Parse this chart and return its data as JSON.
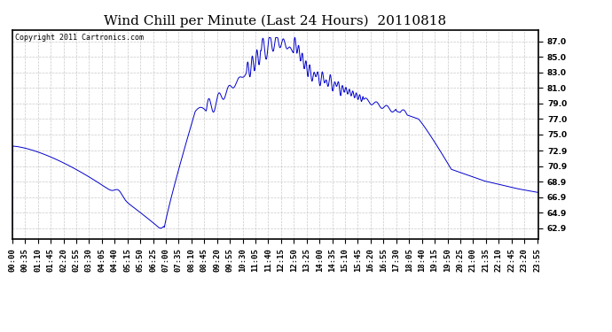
{
  "title": "Wind Chill per Minute (Last 24 Hours)  20110818",
  "copyright": "Copyright 2011 Cartronics.com",
  "line_color": "#0000cc",
  "bg_color": "#ffffff",
  "plot_bg_color": "#ffffff",
  "grid_color": "#bbbbbb",
  "yticks": [
    62.9,
    64.9,
    66.9,
    68.9,
    70.9,
    72.9,
    75.0,
    77.0,
    79.0,
    81.0,
    83.0,
    85.0,
    87.0
  ],
  "ylim": [
    61.5,
    88.5
  ],
  "xtick_labels": [
    "00:00",
    "00:35",
    "01:10",
    "01:45",
    "02:20",
    "02:55",
    "03:30",
    "04:05",
    "04:40",
    "05:15",
    "05:50",
    "06:25",
    "07:00",
    "07:35",
    "08:10",
    "08:45",
    "09:20",
    "09:55",
    "10:30",
    "11:05",
    "11:40",
    "12:15",
    "12:50",
    "13:25",
    "14:00",
    "14:35",
    "15:10",
    "15:45",
    "16:20",
    "16:55",
    "17:30",
    "18:05",
    "18:40",
    "19:15",
    "19:50",
    "20:25",
    "21:00",
    "21:35",
    "22:10",
    "22:45",
    "23:20",
    "23:55"
  ],
  "title_fontsize": 11,
  "axis_fontsize": 6.5
}
